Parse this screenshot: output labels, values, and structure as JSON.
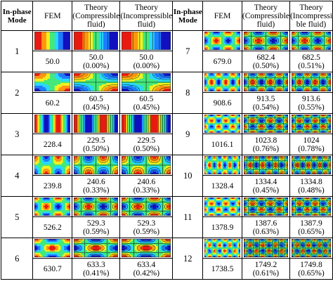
{
  "headers": {
    "mode": "In-phase Mode",
    "fem": "FEM",
    "theory_comp": "Theory (Compressible fluid)",
    "theory_incomp_left": "Theory (Incompressible fluid)",
    "theory_incomp_right": "Theory (Incompressi ble fluid)"
  },
  "colormap": [
    "#1010c0",
    "#1e7cff",
    "#28d8ff",
    "#43e87a",
    "#f0f020",
    "#ff9410",
    "#e81a10"
  ],
  "rows": [
    {
      "mode": "1",
      "fem": "50.0",
      "comp": "50.0",
      "comp_err": "(0.00%)",
      "incomp": "50.0",
      "incomp_err": "(0.00%)",
      "m": 1,
      "n": 0
    },
    {
      "mode": "2",
      "fem": "60.2",
      "comp": "60.5",
      "comp_err": "(0.45%)",
      "incomp": "60.5",
      "incomp_err": "(0.45%)",
      "m": 1,
      "n": 1
    },
    {
      "mode": "3",
      "fem": "228.4",
      "comp": "229.5",
      "comp_err": "(0.50%)",
      "incomp": "229.5",
      "incomp_err": "(0.50%)",
      "m": 3,
      "n": 0
    },
    {
      "mode": "4",
      "fem": "239.8",
      "comp": "240.6",
      "comp_err": "(0.33%)",
      "incomp": "240.6",
      "incomp_err": "(0.33%)",
      "m": 3,
      "n": 1
    },
    {
      "mode": "5",
      "fem": "526.2",
      "comp": "529.3",
      "comp_err": "(0.59%)",
      "incomp": "529.3",
      "incomp_err": "(0.59%)",
      "m": 3,
      "n": 2
    },
    {
      "mode": "6",
      "fem": "630.7",
      "comp": "633.3",
      "comp_err": "(0.41%)",
      "incomp": "633.4",
      "incomp_err": "(0.42%)",
      "m": 2,
      "n": 2
    },
    {
      "mode": "7",
      "fem": "679.0",
      "comp": "682.4",
      "comp_err": "(0.50%)",
      "incomp": "682.5",
      "incomp_err": "(0.51%)",
      "m": 3,
      "n": 2
    },
    {
      "mode": "8",
      "fem": "908.6",
      "comp": "913.5",
      "comp_err": "(0.54%)",
      "incomp": "913.6",
      "incomp_err": "(0.55%)",
      "m": 5,
      "n": 2
    },
    {
      "mode": "9",
      "fem": "1016.1",
      "comp": "1023.8",
      "comp_err": "(0.76%)",
      "incomp": "1024",
      "incomp_err": "(0.78%)",
      "m": 5,
      "n": 3
    },
    {
      "mode": "10",
      "fem": "1328.4",
      "comp": "1334.4",
      "comp_err": "(0.45%)",
      "incomp": "1334.8",
      "incomp_err": "(0.48%)",
      "m": 7,
      "n": 2
    },
    {
      "mode": "11",
      "fem": "1378.9",
      "comp": "1387.6",
      "comp_err": "(0.63%)",
      "incomp": "1387.9",
      "incomp_err": "(0.65%)",
      "m": 5,
      "n": 3
    },
    {
      "mode": "12",
      "fem": "1738.5",
      "comp": "1749.2",
      "comp_err": "(0.61%)",
      "incomp": "1749.8",
      "incomp_err": "(0.65%)",
      "m": 7,
      "n": 3
    }
  ]
}
